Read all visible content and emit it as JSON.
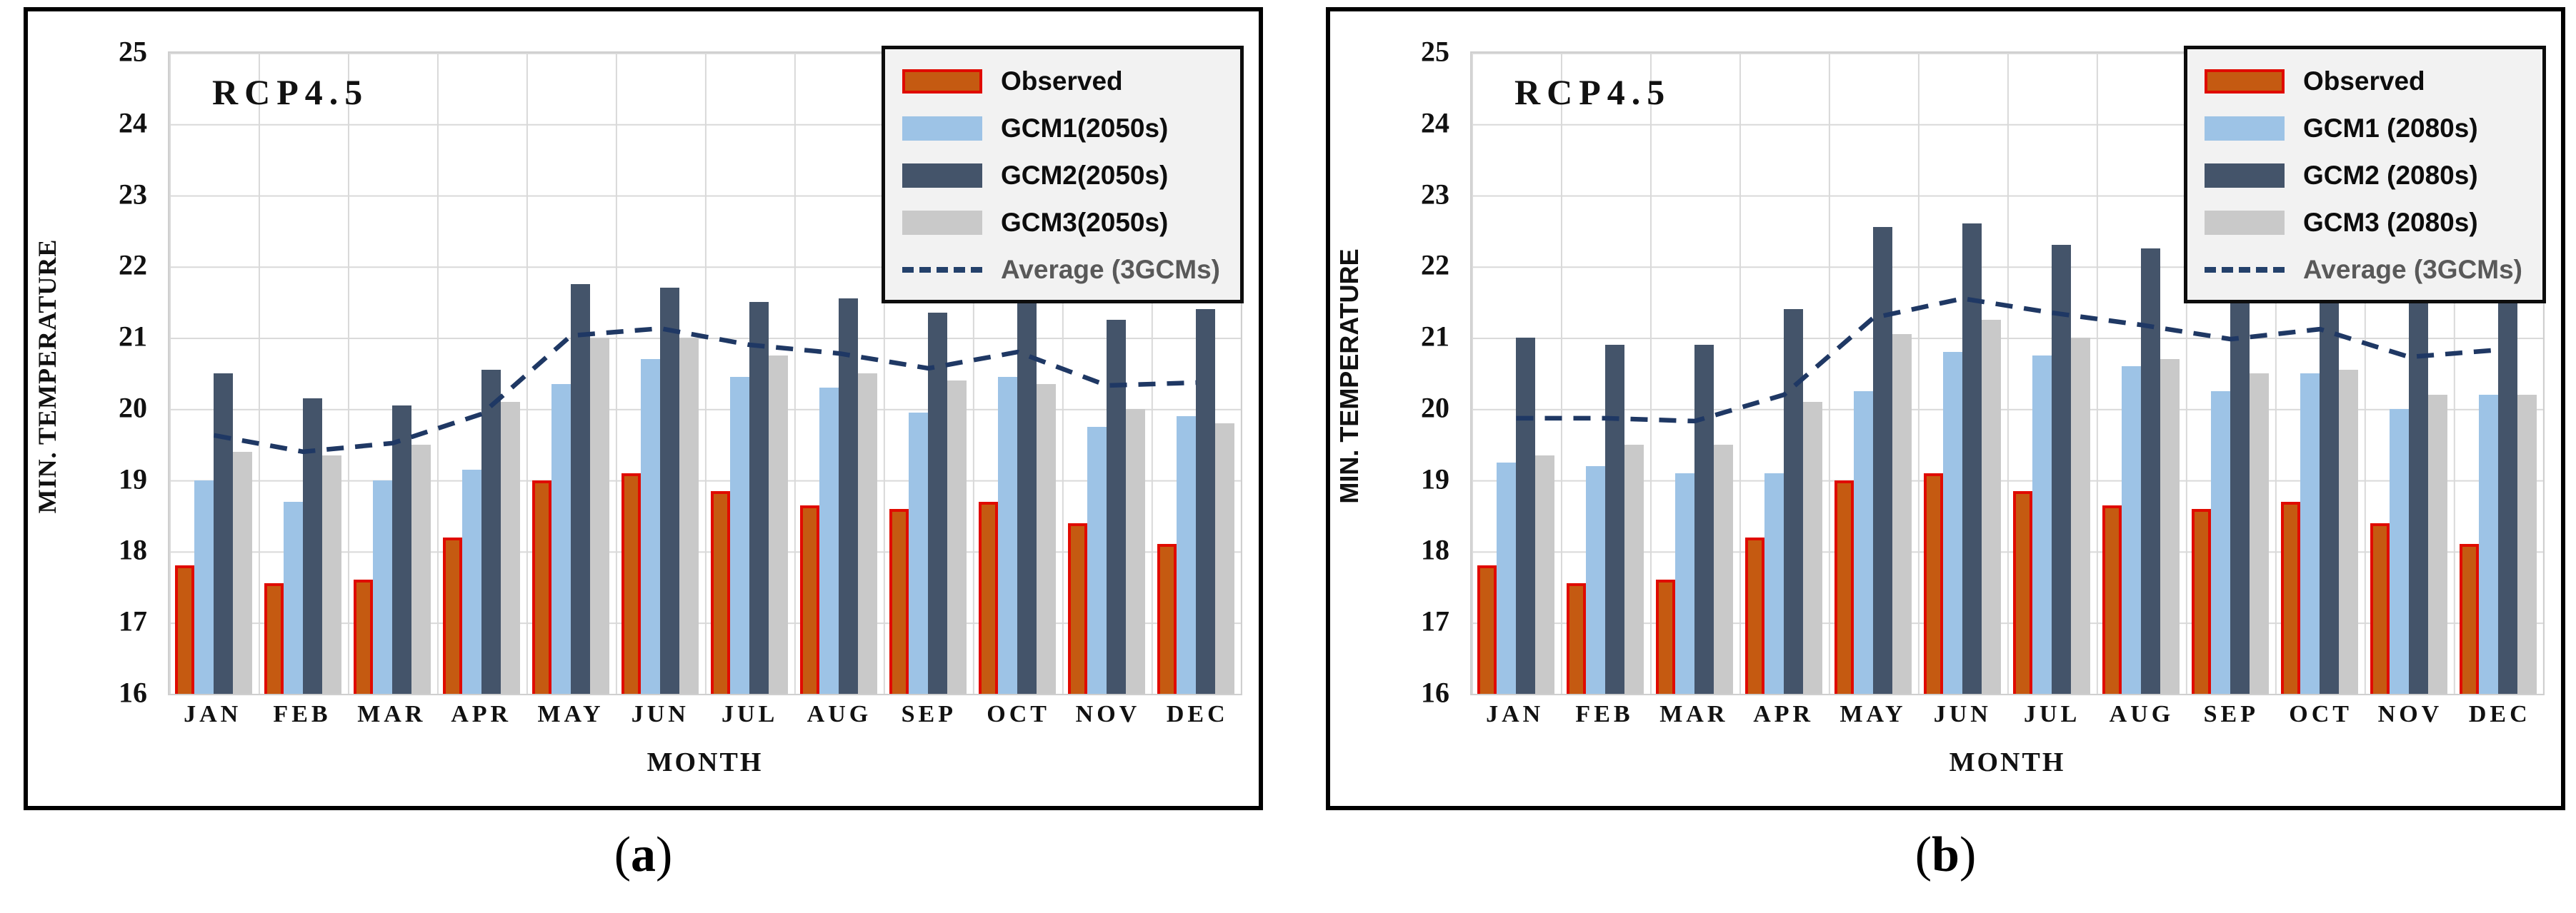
{
  "colors": {
    "observed_fill": "#C55A11",
    "observed_border": "#E00B00",
    "gcm1_fill": "#9DC3E6",
    "gcm2_fill": "#44546A",
    "gcm3_fill": "#C9C9C9",
    "average_line": "#1F3864",
    "grid_line": "#D9D9D9",
    "legend_background": "#F2F2F2",
    "frame_border": "#000000"
  },
  "panels": [
    {
      "rcp_label": "RCP4.5",
      "caption": {
        "open": "(",
        "letter": "a",
        "close": ")"
      },
      "y_title_style": "serif",
      "legend": [
        {
          "series": "observed",
          "label": "Observed"
        },
        {
          "series": "gcm1",
          "label": "GCM1(2050s)"
        },
        {
          "series": "gcm2",
          "label": "GCM2(2050s)"
        },
        {
          "series": "gcm3",
          "label": "GCM3(2050s)"
        },
        {
          "series": "average",
          "label": "Average (3GCMs)"
        }
      ]
    },
    {
      "rcp_label": "RCP4.5",
      "caption": {
        "open": "(",
        "letter": "b",
        "close": ")"
      },
      "y_title_style": "sans",
      "legend": [
        {
          "series": "observed",
          "label": "Observed"
        },
        {
          "series": "gcm1",
          "label": "GCM1 (2080s)"
        },
        {
          "series": "gcm2",
          "label": "GCM2 (2080s)"
        },
        {
          "series": "gcm3",
          "label": "GCM3 (2080s)"
        },
        {
          "series": "average",
          "label": "Average (3GCMs)"
        }
      ]
    }
  ],
  "chart_data": [
    {
      "type": "bar",
      "title": "RCP4.5",
      "xlabel": "MONTH",
      "ylabel": "MIN. TEMPERATURE",
      "ylim": [
        16,
        25
      ],
      "y_ticks": [
        25,
        24,
        23,
        22,
        21,
        20,
        19,
        18,
        17,
        16
      ],
      "grid": true,
      "legend_position": "top-right",
      "categories": [
        "JAN",
        "FEB",
        "MAR",
        "APR",
        "MAY",
        "JUN",
        "JUL",
        "AUG",
        "SEP",
        "OCT",
        "NOV",
        "DEC"
      ],
      "series": [
        {
          "key": "observed",
          "name": "Observed",
          "values": [
            17.8,
            17.55,
            17.6,
            18.2,
            19.0,
            19.1,
            18.85,
            18.65,
            18.6,
            18.7,
            18.4,
            18.1
          ]
        },
        {
          "key": "gcm1",
          "name": "GCM1(2050s)",
          "values": [
            19.0,
            18.7,
            19.0,
            19.15,
            20.35,
            20.7,
            20.45,
            20.3,
            19.95,
            20.45,
            19.75,
            19.9
          ]
        },
        {
          "key": "gcm2",
          "name": "GCM2(2050s)",
          "values": [
            20.5,
            20.15,
            20.05,
            20.55,
            21.75,
            21.7,
            21.5,
            21.55,
            21.35,
            21.6,
            21.25,
            21.4
          ]
        },
        {
          "key": "gcm3",
          "name": "GCM3(2050s)",
          "values": [
            19.4,
            19.35,
            19.5,
            20.1,
            21.0,
            21.0,
            20.75,
            20.5,
            20.4,
            20.35,
            20.0,
            19.8
          ]
        },
        {
          "key": "average",
          "name": "Average (3GCMs)",
          "style": "dashed-line",
          "values": [
            19.63,
            19.4,
            19.52,
            19.93,
            21.03,
            21.13,
            20.9,
            20.78,
            20.57,
            20.8,
            20.33,
            20.37
          ]
        }
      ]
    },
    {
      "type": "bar",
      "title": "RCP4.5",
      "xlabel": "MONTH",
      "ylabel": "MIN. TEMPERATURE",
      "ylim": [
        16,
        25
      ],
      "y_ticks": [
        25,
        24,
        23,
        22,
        21,
        20,
        19,
        18,
        17,
        16
      ],
      "grid": true,
      "legend_position": "top-right",
      "categories": [
        "JAN",
        "FEB",
        "MAR",
        "APR",
        "MAY",
        "JUN",
        "JUL",
        "AUG",
        "SEP",
        "OCT",
        "NOV",
        "DEC"
      ],
      "series": [
        {
          "key": "observed",
          "name": "Observed",
          "values": [
            17.8,
            17.55,
            17.6,
            18.2,
            19.0,
            19.1,
            18.85,
            18.65,
            18.6,
            18.7,
            18.4,
            18.1
          ]
        },
        {
          "key": "gcm1",
          "name": "GCM1 (2080s)",
          "values": [
            19.25,
            19.2,
            19.1,
            19.1,
            20.25,
            20.8,
            20.75,
            20.6,
            20.25,
            20.5,
            20.0,
            20.2
          ]
        },
        {
          "key": "gcm2",
          "name": "GCM2 (2080s)",
          "values": [
            21.0,
            20.9,
            20.9,
            21.4,
            22.55,
            22.6,
            22.3,
            22.25,
            22.2,
            22.3,
            22.0,
            22.1
          ]
        },
        {
          "key": "gcm3",
          "name": "GCM3 (2080s)",
          "values": [
            19.35,
            19.5,
            19.5,
            20.1,
            21.05,
            21.25,
            21.0,
            20.7,
            20.5,
            20.55,
            20.2,
            20.2
          ]
        },
        {
          "key": "average",
          "name": "Average (3GCMs)",
          "style": "dashed-line",
          "values": [
            19.87,
            19.87,
            19.83,
            20.2,
            21.28,
            21.55,
            21.35,
            21.18,
            20.98,
            21.12,
            20.73,
            20.83
          ]
        }
      ]
    }
  ]
}
